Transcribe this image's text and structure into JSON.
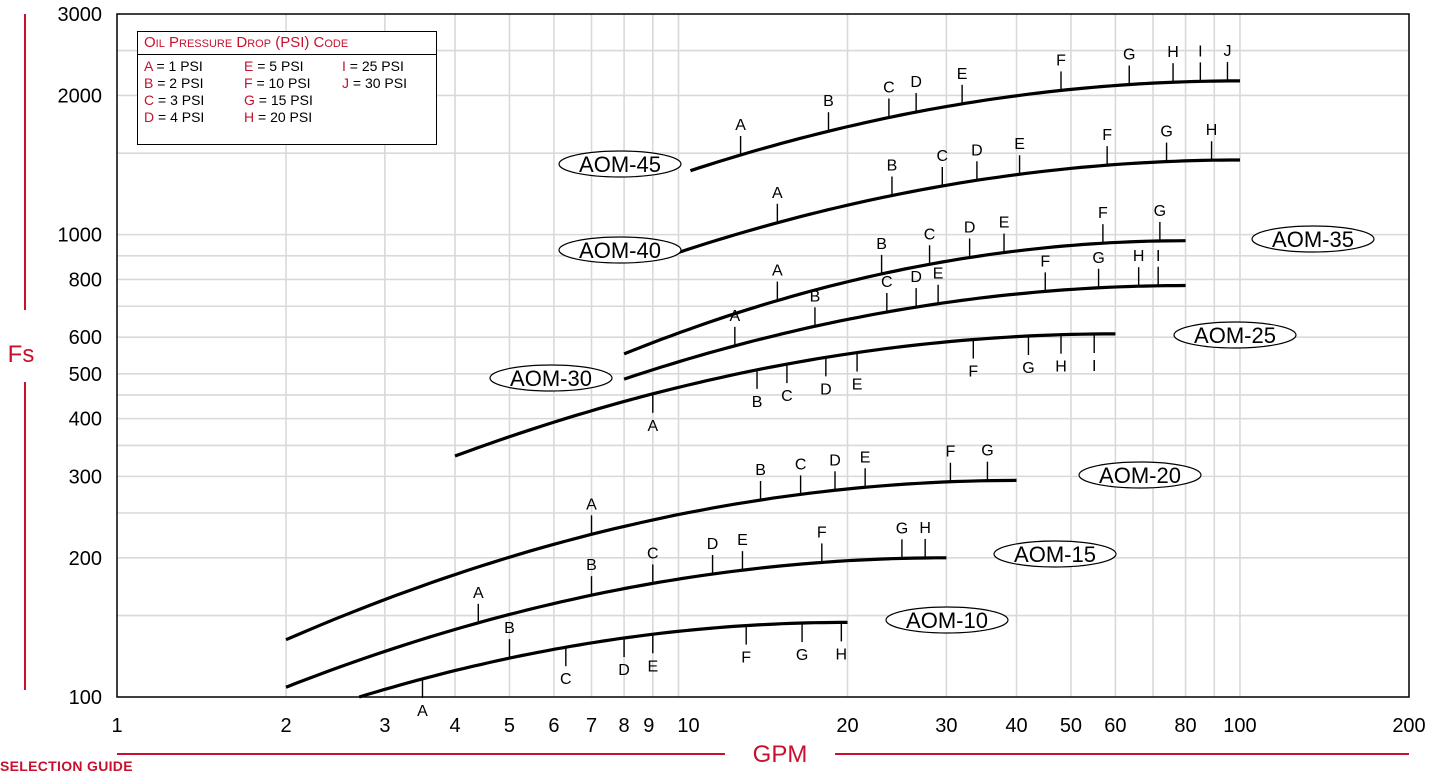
{
  "chart_data": {
    "type": "line",
    "x_scale": "log",
    "y_scale": "log",
    "xlabel": "GPM",
    "ylabel": "Fs",
    "xlim": [
      1,
      200
    ],
    "ylim": [
      100,
      3000
    ],
    "x_ticks": [
      "1",
      "2",
      "3",
      "4",
      "5",
      "6",
      "7",
      "8",
      "9",
      "10",
      "20",
      "30",
      "40",
      "50",
      "60",
      "80",
      "100",
      "200"
    ],
    "y_ticks": [
      "100",
      "200",
      "300",
      "400",
      "500",
      "600",
      "800",
      "1000",
      "2000",
      "3000"
    ],
    "grid": true,
    "legend": {
      "title": "Oil Pressure Drop (PSI) Code",
      "position": "top-left",
      "entries": [
        {
          "code": "A",
          "text": "= 1   PSI"
        },
        {
          "code": "E",
          "text": "= 5   PSI"
        },
        {
          "code": "I",
          "text": "= 25 PSI"
        },
        {
          "code": "B",
          "text": "= 2   PSI"
        },
        {
          "code": "F",
          "text": "= 10 PSI"
        },
        {
          "code": "J",
          "text": "= 30 PSI"
        },
        {
          "code": "C",
          "text": "= 3   PSI"
        },
        {
          "code": "G",
          "text": "= 15 PSI"
        },
        {
          "code": "",
          "text": ""
        },
        {
          "code": "D",
          "text": "= 4   PSI"
        },
        {
          "code": "H",
          "text": "= 20 PSI"
        },
        {
          "code": "",
          "text": ""
        }
      ]
    },
    "series": [
      {
        "name": "AOM-10",
        "x": [
          2.7,
          20
        ],
        "y": [
          100,
          145
        ],
        "markers": [
          {
            "l": "A",
            "x": 3.5,
            "y": 109,
            "p": "b"
          },
          {
            "l": "B",
            "x": 5,
            "y": 117,
            "p": "a"
          },
          {
            "l": "C",
            "x": 6.3,
            "y": 123,
            "p": "b"
          },
          {
            "l": "D",
            "x": 8,
            "y": 128,
            "p": "b"
          },
          {
            "l": "E",
            "x": 9,
            "y": 130,
            "p": "b"
          },
          {
            "l": "F",
            "x": 13.2,
            "y": 138,
            "p": "b"
          },
          {
            "l": "G",
            "x": 16.6,
            "y": 141,
            "p": "b"
          },
          {
            "l": "H",
            "x": 19.5,
            "y": 144,
            "p": "b"
          }
        ]
      },
      {
        "name": "AOM-15",
        "x": [
          2,
          30
        ],
        "y": [
          105,
          200
        ],
        "markers": [
          {
            "l": "A",
            "x": 4.4,
            "y": 137,
            "p": "a"
          },
          {
            "l": "B",
            "x": 7,
            "y": 160,
            "p": "a"
          },
          {
            "l": "C",
            "x": 9,
            "y": 171,
            "p": "a"
          },
          {
            "l": "D",
            "x": 11.5,
            "y": 180,
            "p": "a"
          },
          {
            "l": "E",
            "x": 13,
            "y": 184,
            "p": "a"
          },
          {
            "l": "F",
            "x": 18,
            "y": 192,
            "p": "a"
          },
          {
            "l": "G",
            "x": 25,
            "y": 198,
            "p": "a"
          },
          {
            "l": "H",
            "x": 27.5,
            "y": 199,
            "p": "a"
          }
        ]
      },
      {
        "name": "AOM-20",
        "x": [
          2,
          40
        ],
        "y": [
          133,
          294
        ],
        "markers": [
          {
            "l": "A",
            "x": 7,
            "y": 215,
            "p": "a"
          },
          {
            "l": "B",
            "x": 14,
            "y": 248,
            "p": "a"
          },
          {
            "l": "C",
            "x": 16.5,
            "y": 256,
            "p": "a"
          },
          {
            "l": "D",
            "x": 19,
            "y": 263,
            "p": "a"
          },
          {
            "l": "E",
            "x": 21.5,
            "y": 269,
            "p": "a"
          },
          {
            "l": "F",
            "x": 30.5,
            "y": 282,
            "p": "a"
          },
          {
            "l": "G",
            "x": 35.5,
            "y": 288,
            "p": "a"
          }
        ]
      },
      {
        "name": "AOM-25",
        "x": [
          4,
          60
        ],
        "y": [
          332,
          610
        ],
        "markers": [
          {
            "l": "A",
            "x": 9,
            "y": 427,
            "p": "b"
          },
          {
            "l": "B",
            "x": 13.8,
            "y": 475,
            "p": "b"
          },
          {
            "l": "C",
            "x": 15.6,
            "y": 490,
            "p": "b"
          },
          {
            "l": "D",
            "x": 18.3,
            "y": 508,
            "p": "b"
          },
          {
            "l": "E",
            "x": 20.8,
            "y": 523,
            "p": "b"
          },
          {
            "l": "F",
            "x": 33.5,
            "y": 562,
            "p": "b"
          },
          {
            "l": "G",
            "x": 42,
            "y": 580,
            "p": "b"
          },
          {
            "l": "H",
            "x": 48,
            "y": 591,
            "p": "b"
          },
          {
            "l": "I",
            "x": 55,
            "y": 600,
            "p": "b"
          }
        ]
      },
      {
        "name": "AOM-30",
        "x": [
          8,
          80
        ],
        "y": [
          487,
          776
        ],
        "markers": [
          {
            "l": "A",
            "x": 12.6,
            "y": 555,
            "p": "a"
          },
          {
            "l": "B",
            "x": 17.5,
            "y": 613,
            "p": "a"
          },
          {
            "l": "C",
            "x": 23.5,
            "y": 660,
            "p": "a"
          },
          {
            "l": "D",
            "x": 26.5,
            "y": 678,
            "p": "a"
          },
          {
            "l": "E",
            "x": 29,
            "y": 690,
            "p": "a"
          },
          {
            "l": "F",
            "x": 45,
            "y": 734,
            "p": "a"
          },
          {
            "l": "G",
            "x": 56,
            "y": 754,
            "p": "a"
          },
          {
            "l": "H",
            "x": 66,
            "y": 765,
            "p": "a"
          },
          {
            "l": "I",
            "x": 71.5,
            "y": 769,
            "p": "a"
          }
        ]
      },
      {
        "name": "AOM-35",
        "x": [
          8,
          80
        ],
        "y": [
          552,
          970
        ],
        "markers": [
          {
            "l": "A",
            "x": 15,
            "y": 701,
            "p": "a"
          },
          {
            "l": "B",
            "x": 23,
            "y": 787,
            "p": "a"
          },
          {
            "l": "C",
            "x": 28,
            "y": 825,
            "p": "a"
          },
          {
            "l": "D",
            "x": 33,
            "y": 855,
            "p": "a"
          },
          {
            "l": "E",
            "x": 38,
            "y": 878,
            "p": "a"
          },
          {
            "l": "F",
            "x": 57,
            "y": 935,
            "p": "a"
          },
          {
            "l": "G",
            "x": 72,
            "y": 960,
            "p": "a"
          }
        ]
      },
      {
        "name": "AOM-40",
        "x": [
          10,
          100
        ],
        "y": [
          915,
          1450
        ],
        "markers": [
          {
            "l": "A",
            "x": 15,
            "y": 1050,
            "p": "a"
          },
          {
            "l": "B",
            "x": 24,
            "y": 1180,
            "p": "a"
          },
          {
            "l": "C",
            "x": 29.5,
            "y": 1245,
            "p": "a"
          },
          {
            "l": "D",
            "x": 34,
            "y": 1280,
            "p": "a"
          },
          {
            "l": "E",
            "x": 40.5,
            "y": 1320,
            "p": "a"
          },
          {
            "l": "F",
            "x": 58,
            "y": 1385,
            "p": "a"
          },
          {
            "l": "G",
            "x": 74,
            "y": 1420,
            "p": "a"
          },
          {
            "l": "H",
            "x": 89,
            "y": 1440,
            "p": "a"
          }
        ]
      },
      {
        "name": "AOM-45",
        "x": [
          10.5,
          100
        ],
        "y": [
          1375,
          2150
        ],
        "markers": [
          {
            "l": "A",
            "x": 12.9,
            "y": 1475,
            "p": "a"
          },
          {
            "l": "B",
            "x": 18.5,
            "y": 1645,
            "p": "a"
          },
          {
            "l": "C",
            "x": 23.7,
            "y": 1760,
            "p": "a"
          },
          {
            "l": "D",
            "x": 26.5,
            "y": 1800,
            "p": "a"
          },
          {
            "l": "E",
            "x": 32,
            "y": 1875,
            "p": "a"
          },
          {
            "l": "F",
            "x": 48,
            "y": 1990,
            "p": "a"
          },
          {
            "l": "G",
            "x": 63.5,
            "y": 2060,
            "p": "a"
          },
          {
            "l": "H",
            "x": 76,
            "y": 2100,
            "p": "a"
          },
          {
            "l": "I",
            "x": 85,
            "y": 2120,
            "p": "a"
          },
          {
            "l": "J",
            "x": 95,
            "y": 2140,
            "p": "a"
          }
        ]
      }
    ]
  },
  "footer": {
    "text": "SELECTION GUIDE"
  },
  "colors": {
    "accent": "#c8102e",
    "curve": "#000000",
    "grid": "#d9d9d9"
  }
}
